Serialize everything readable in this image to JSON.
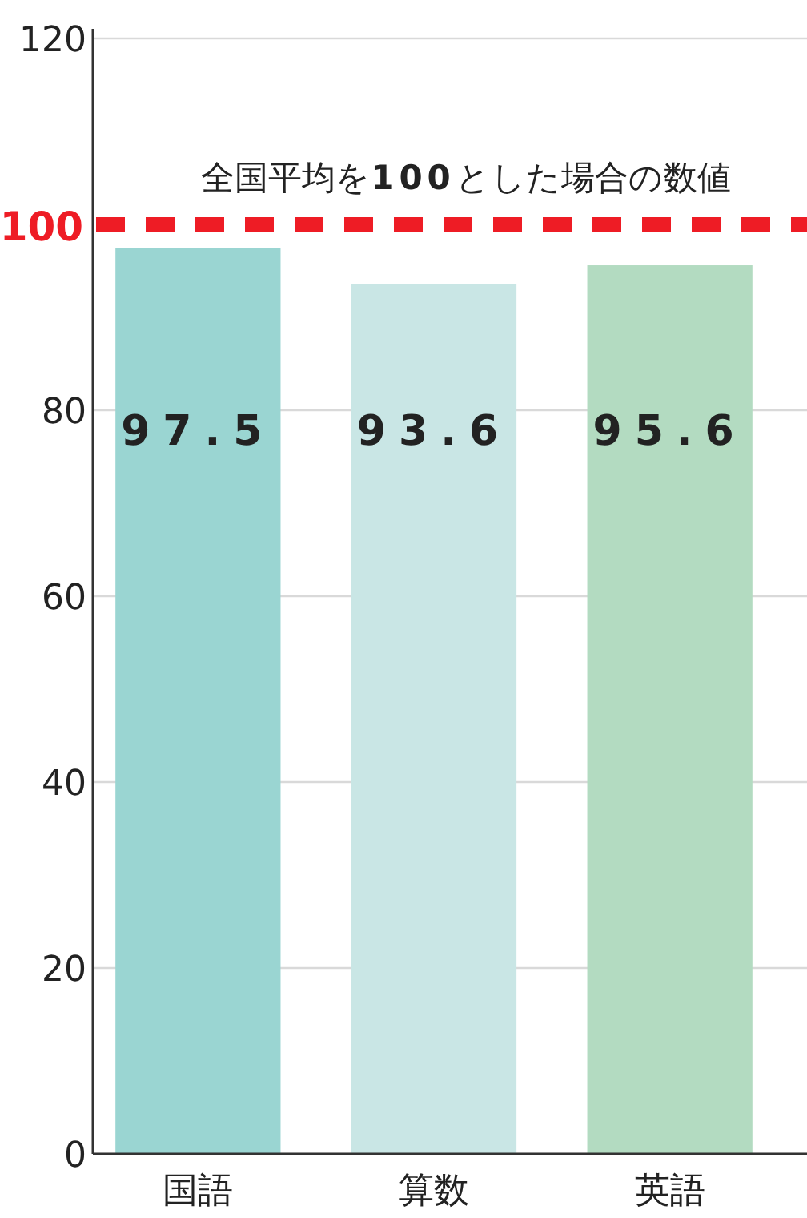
{
  "chart_data": {
    "type": "bar",
    "categories": [
      "国語",
      "算数",
      "英語"
    ],
    "values": [
      97.5,
      93.6,
      95.6
    ],
    "colors": [
      "#9ad5d2",
      "#c9e6e5",
      "#b3dbc1"
    ],
    "ylim": [
      0,
      120
    ],
    "yticks": [
      0,
      20,
      40,
      60,
      80,
      120
    ],
    "grid": "y",
    "data_labels": true,
    "ref_lines": [
      {
        "axis": "y",
        "value": 100,
        "label": "100",
        "color": "#ee1c25",
        "line_style": "dashed"
      }
    ],
    "annotations": [
      "全国平均を100とした場合の数値"
    ]
  }
}
